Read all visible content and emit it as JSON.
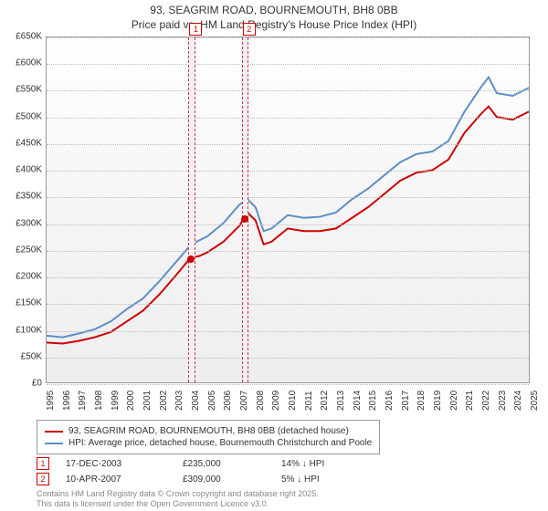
{
  "title_line1": "93, SEAGRIM ROAD, BOURNEMOUTH, BH8 0BB",
  "title_line2": "Price paid vs. HM Land Registry's House Price Index (HPI)",
  "chart": {
    "type": "line",
    "xlim": [
      1995,
      2025
    ],
    "ylim": [
      0,
      650000
    ],
    "ytick_step": 50000,
    "yticks": [
      "£0",
      "£50K",
      "£100K",
      "£150K",
      "£200K",
      "£250K",
      "£300K",
      "£350K",
      "£400K",
      "£450K",
      "£500K",
      "£550K",
      "£600K",
      "£650K"
    ],
    "xticks": [
      1995,
      1996,
      1997,
      1998,
      1999,
      2000,
      2001,
      2002,
      2003,
      2004,
      2005,
      2006,
      2007,
      2008,
      2009,
      2010,
      2011,
      2012,
      2013,
      2014,
      2015,
      2016,
      2017,
      2018,
      2019,
      2020,
      2021,
      2022,
      2023,
      2024,
      2025
    ],
    "background_color": "#f5f5f5",
    "grid_color": "#bbbbbb",
    "series": [
      {
        "name": "93, SEAGRIM ROAD, BOURNEMOUTH, BH8 0BB (detached house)",
        "color": "#cc0000",
        "width": 2,
        "data": [
          [
            1995,
            75000
          ],
          [
            1996,
            73000
          ],
          [
            1997,
            78000
          ],
          [
            1998,
            85000
          ],
          [
            1999,
            95000
          ],
          [
            2000,
            115000
          ],
          [
            2001,
            135000
          ],
          [
            2002,
            165000
          ],
          [
            2003,
            200000
          ],
          [
            2003.96,
            235000
          ],
          [
            2004.5,
            238000
          ],
          [
            2005,
            245000
          ],
          [
            2006,
            265000
          ],
          [
            2007,
            295000
          ],
          [
            2007.27,
            309000
          ],
          [
            2007.5,
            320000
          ],
          [
            2008,
            305000
          ],
          [
            2008.5,
            260000
          ],
          [
            2009,
            265000
          ],
          [
            2010,
            290000
          ],
          [
            2011,
            285000
          ],
          [
            2012,
            285000
          ],
          [
            2013,
            290000
          ],
          [
            2014,
            310000
          ],
          [
            2015,
            330000
          ],
          [
            2016,
            355000
          ],
          [
            2017,
            380000
          ],
          [
            2018,
            395000
          ],
          [
            2019,
            400000
          ],
          [
            2020,
            420000
          ],
          [
            2021,
            470000
          ],
          [
            2022,
            505000
          ],
          [
            2022.5,
            520000
          ],
          [
            2023,
            500000
          ],
          [
            2024,
            495000
          ],
          [
            2025,
            510000
          ]
        ]
      },
      {
        "name": "HPI: Average price, detached house, Bournemouth Christchurch and Poole",
        "color": "#5b8fc7",
        "width": 2,
        "data": [
          [
            1995,
            88000
          ],
          [
            1996,
            85000
          ],
          [
            1997,
            92000
          ],
          [
            1998,
            100000
          ],
          [
            1999,
            115000
          ],
          [
            2000,
            138000
          ],
          [
            2001,
            158000
          ],
          [
            2002,
            190000
          ],
          [
            2003,
            225000
          ],
          [
            2004,
            260000
          ],
          [
            2005,
            275000
          ],
          [
            2006,
            300000
          ],
          [
            2007,
            335000
          ],
          [
            2007.5,
            345000
          ],
          [
            2008,
            330000
          ],
          [
            2008.5,
            285000
          ],
          [
            2009,
            290000
          ],
          [
            2010,
            315000
          ],
          [
            2011,
            310000
          ],
          [
            2012,
            312000
          ],
          [
            2013,
            320000
          ],
          [
            2014,
            345000
          ],
          [
            2015,
            365000
          ],
          [
            2016,
            390000
          ],
          [
            2017,
            415000
          ],
          [
            2018,
            430000
          ],
          [
            2019,
            435000
          ],
          [
            2020,
            455000
          ],
          [
            2021,
            510000
          ],
          [
            2022,
            555000
          ],
          [
            2022.5,
            575000
          ],
          [
            2023,
            545000
          ],
          [
            2024,
            540000
          ],
          [
            2025,
            555000
          ]
        ]
      }
    ],
    "highlight_bands": [
      {
        "from": 2003.8,
        "to": 2004.2,
        "color": "#f0f0fa",
        "marker": "1"
      },
      {
        "from": 2007.1,
        "to": 2007.5,
        "color": "#eaf0fa",
        "marker": "2"
      }
    ],
    "markers": [
      {
        "x": 2003.96,
        "y": 235000
      },
      {
        "x": 2007.27,
        "y": 309000
      }
    ]
  },
  "legend": [
    {
      "color": "#cc0000",
      "label": "93, SEAGRIM ROAD, BOURNEMOUTH, BH8 0BB (detached house)"
    },
    {
      "color": "#5b8fc7",
      "label": "HPI: Average price, detached house, Bournemouth Christchurch and Poole"
    }
  ],
  "events": [
    {
      "marker": "1",
      "date": "17-DEC-2003",
      "price": "£235,000",
      "delta": "14% ↓ HPI"
    },
    {
      "marker": "2",
      "date": "10-APR-2007",
      "price": "£309,000",
      "delta": "5% ↓ HPI"
    }
  ],
  "footer_line1": "Contains HM Land Registry data © Crown copyright and database right 2025.",
  "footer_line2": "This data is licensed under the Open Government Licence v3.0."
}
